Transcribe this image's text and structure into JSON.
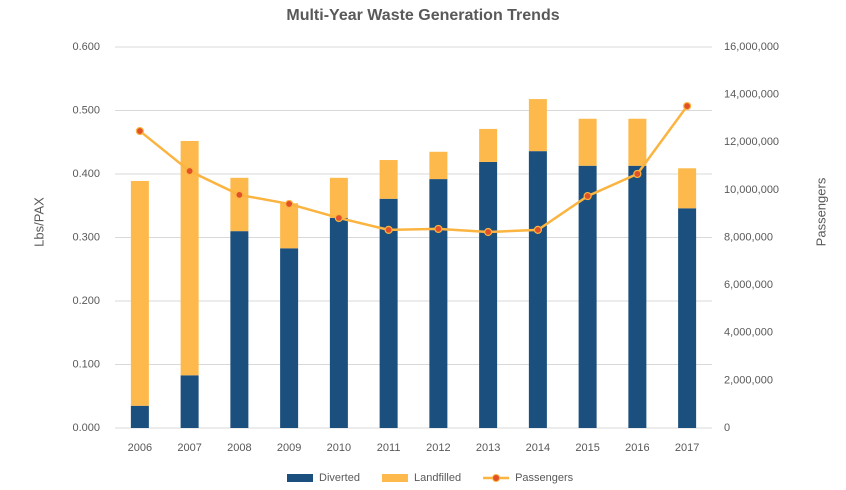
{
  "chart_data": {
    "type": "bar",
    "stacked": true,
    "title": "Multi-Year Waste Generation Trends",
    "y_label": "Lbs/PAX",
    "y2_label": "Passengers",
    "categories": [
      "2006",
      "2007",
      "2008",
      "2009",
      "2010",
      "2011",
      "2012",
      "2013",
      "2014",
      "2015",
      "2016",
      "2017"
    ],
    "series": [
      {
        "name": "Diverted",
        "type": "bar",
        "color": "#1b4f7d",
        "values": [
          0.035,
          0.083,
          0.31,
          0.283,
          0.331,
          0.361,
          0.392,
          0.419,
          0.436,
          0.413,
          0.413,
          0.346
        ]
      },
      {
        "name": "Landfilled",
        "type": "bar",
        "color": "#fdb94b",
        "values": [
          0.354,
          0.369,
          0.084,
          0.071,
          0.063,
          0.061,
          0.043,
          0.052,
          0.082,
          0.074,
          0.074,
          0.063
        ]
      },
      {
        "name": "Passengers",
        "type": "line",
        "axis": "y2",
        "color": "#fbb440",
        "marker_color": "#e2502a",
        "values": [
          12470000,
          10790000,
          9790000,
          9410000,
          8820000,
          8320000,
          8360000,
          8230000,
          8320000,
          9740000,
          10670000,
          13520000
        ]
      }
    ],
    "ylim": [
      0,
      0.6
    ],
    "yticks": [
      {
        "value": 0,
        "label": "0.000"
      },
      {
        "value": 0.1,
        "label": "0.100"
      },
      {
        "value": 0.2,
        "label": "0.200"
      },
      {
        "value": 0.3,
        "label": "0.300"
      },
      {
        "value": 0.4,
        "label": "0.400"
      },
      {
        "value": 0.5,
        "label": "0.500"
      },
      {
        "value": 0.6,
        "label": "0.600"
      }
    ],
    "y2lim": [
      0,
      16000000
    ],
    "y2ticks": [
      0,
      {
        "value": 2000000,
        "label": "2,000,000"
      },
      {
        "value": 4000000,
        "label": "4,000,000"
      },
      {
        "value": 6000000,
        "label": "6,000,000"
      },
      {
        "value": 8000000,
        "label": "8,000,000"
      },
      {
        "value": 10000000,
        "label": "10,000,000"
      },
      {
        "value": 12000000,
        "label": "12,000,000"
      },
      {
        "value": 14000000,
        "label": "14,000,000"
      },
      {
        "value": 16000000,
        "label": "16,000,000"
      }
    ],
    "grid": true,
    "legend": "bottom"
  }
}
